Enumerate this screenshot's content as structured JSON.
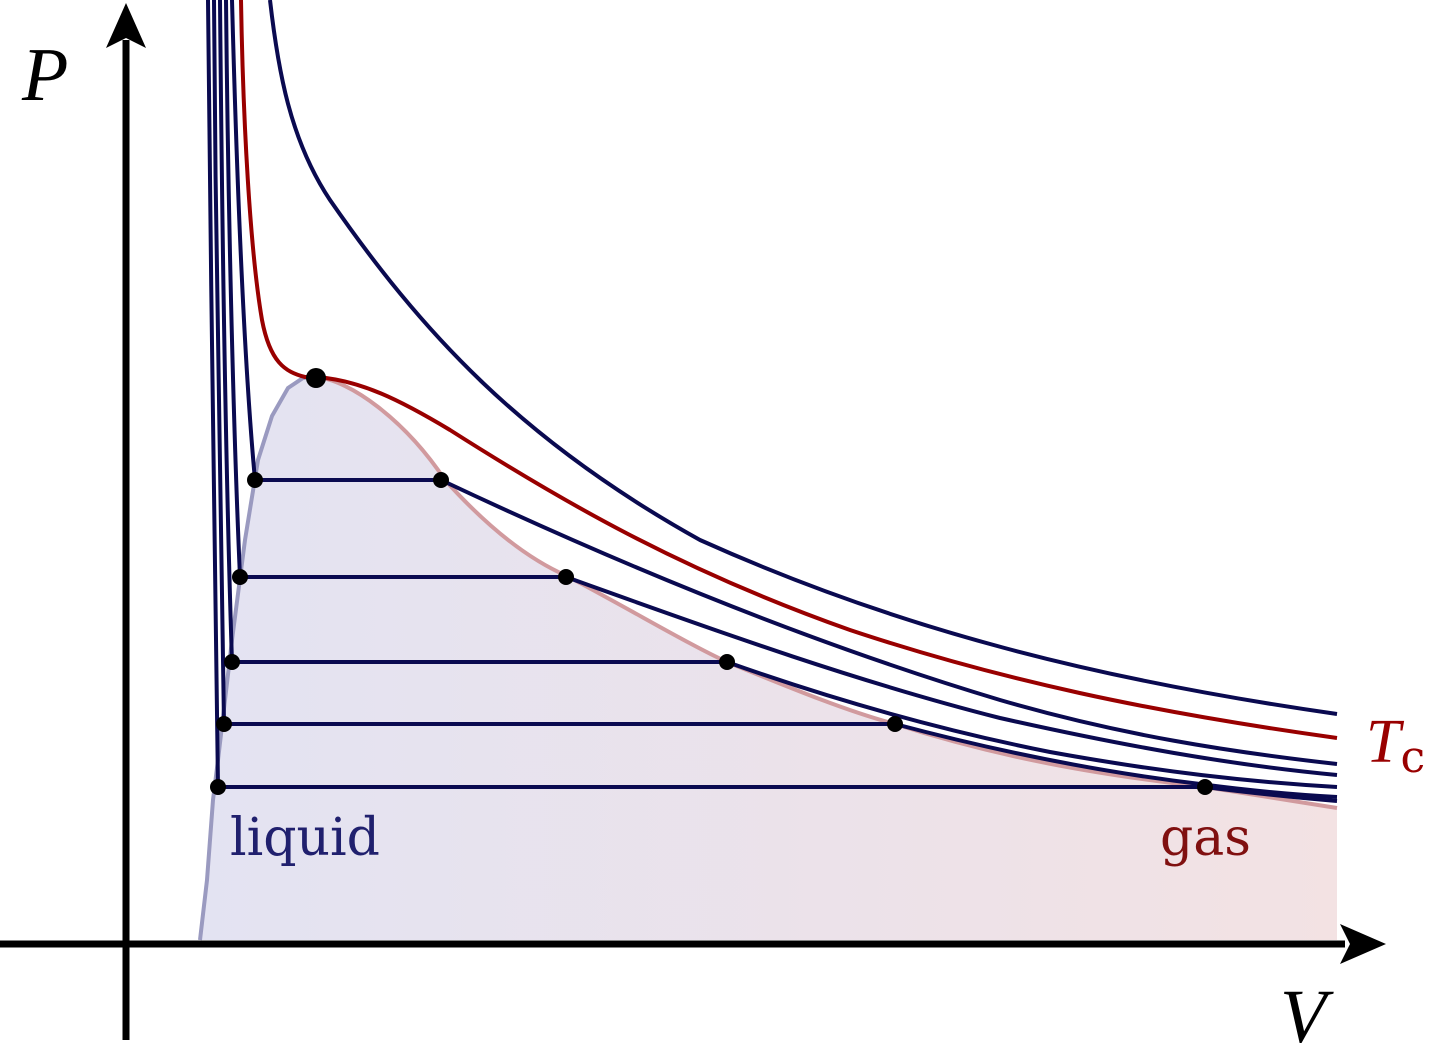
{
  "axes": {
    "x_label": "V",
    "y_label": "P"
  },
  "labels": {
    "critical_temp_main": "T",
    "critical_temp_sub": "c",
    "liquid": "liquid",
    "gas": "gas"
  },
  "colors": {
    "isotherm": "#0a0a50",
    "critical": "#990000",
    "liquid_text": "#20206e",
    "gas_text": "#801010",
    "axis": "#000000",
    "coexistence_liquid_edge": "#9a9ac0",
    "coexistence_gas_edge": "#d19a9e",
    "fill_liquid": "#e3e3f2",
    "fill_gas": "#f3e2e3"
  }
}
